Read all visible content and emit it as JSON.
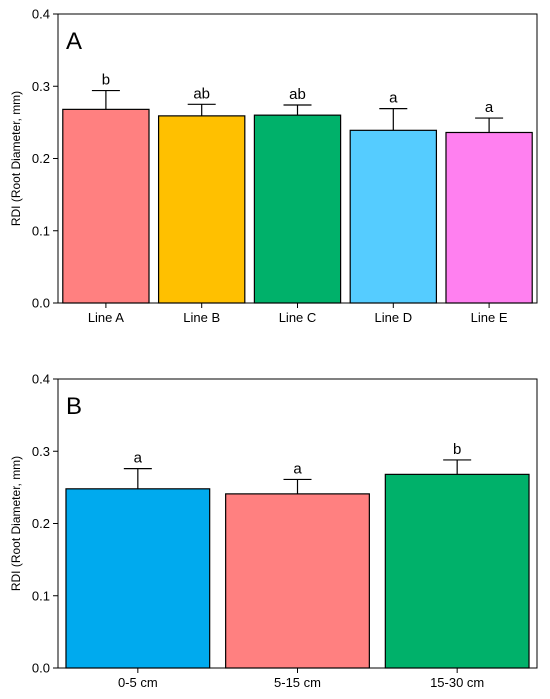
{
  "chart_data": [
    {
      "type": "bar",
      "panel_label": "A",
      "categories": [
        "Line A",
        "Line B",
        "Line C",
        "Line D",
        "Line E"
      ],
      "values": [
        0.268,
        0.259,
        0.26,
        0.239,
        0.236
      ],
      "errors": [
        0.026,
        0.016,
        0.014,
        0.03,
        0.02
      ],
      "significance": [
        "b",
        "ab",
        "ab",
        "a",
        "a"
      ],
      "colors": [
        "#ff8080",
        "#ffc000",
        "#00b16a",
        "#55ccff",
        "#ff80f0"
      ],
      "ylabel": "RDI (Root Diameter, mm)",
      "xlabel": "",
      "ylim": [
        0,
        0.4
      ],
      "yticks": [
        "0.0",
        "0.1",
        "0.2",
        "0.3",
        "0.4"
      ],
      "grid": false
    },
    {
      "type": "bar",
      "panel_label": "B",
      "categories": [
        "0-5 cm",
        "5-15 cm",
        "15-30 cm"
      ],
      "values": [
        0.248,
        0.241,
        0.268
      ],
      "errors": [
        0.028,
        0.02,
        0.02
      ],
      "significance": [
        "a",
        "a",
        "b"
      ],
      "colors": [
        "#00aaee",
        "#ff8080",
        "#00b16a"
      ],
      "ylabel": "RDI (Root Diameter, mm)",
      "xlabel": "",
      "ylim": [
        0,
        0.4
      ],
      "yticks": [
        "0.0",
        "0.1",
        "0.2",
        "0.3",
        "0.4"
      ],
      "grid": false
    }
  ]
}
